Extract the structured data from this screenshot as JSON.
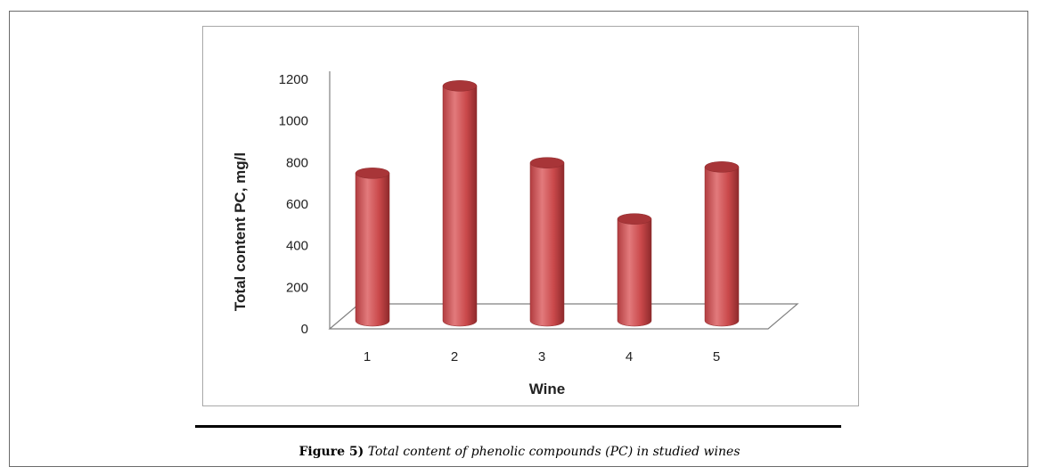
{
  "caption": {
    "label": "Figure 5)",
    "text": "Total content of phenolic compounds (PC) in studied wines"
  },
  "colors": {
    "bar_fill": "#c9484a",
    "bar_top": "#a83538",
    "bar_highlight": "#e27a7c",
    "bar_shadow": "#8e2a2c",
    "axis": "#808080"
  },
  "chart_data": {
    "type": "bar",
    "style": "3d-cylinder",
    "categories": [
      "1",
      "2",
      "3",
      "4",
      "5"
    ],
    "values": [
      710,
      1130,
      760,
      490,
      740
    ],
    "xlabel": "Wine",
    "ylabel": "Total content PC, mg/l",
    "ylim": [
      0,
      1200
    ],
    "yticks": [
      "0",
      "200",
      "400",
      "600",
      "800",
      "1000",
      "1200"
    ],
    "grid": false,
    "legend": "none"
  }
}
